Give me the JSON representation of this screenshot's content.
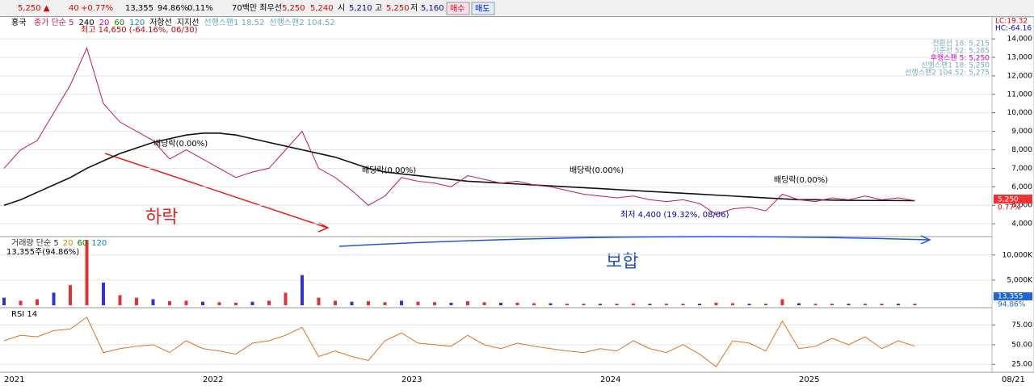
{
  "toolbar": {
    "price": "5,250 ▲",
    "change": "40",
    "change_pct": "+0.77%",
    "volume": "13,355",
    "volume_pct": "94.86%",
    "turnover": "0.11%",
    "best_quote_label": "70백만 최우선",
    "ask": "5,250",
    "bid": "5,240",
    "open_label": "시",
    "open": "5,210",
    "high_label": "고",
    "high": "5,250",
    "low_label": "저",
    "low": "5,160",
    "buy_button": "매수",
    "sell_button": "매도"
  },
  "price_panel": {
    "type": "line",
    "name": "홍국",
    "legend": [
      "종가 단순 5",
      "240",
      "20",
      "60",
      "120",
      "저항선",
      "지지선",
      "선행스팬1 18.52",
      "선행스팬2 104.52"
    ],
    "lc": "LC:19.32",
    "hc": "HC:-64.16",
    "ylim": [
      3350,
      15140
    ],
    "yticks": [
      {
        "value": 4000,
        "label": "4,000"
      },
      {
        "value": 5000,
        "label": "5,000"
      },
      {
        "value": 6000,
        "label": "6,000"
      },
      {
        "value": 7000,
        "label": "7,000"
      },
      {
        "value": 8000,
        "label": "8,000"
      },
      {
        "value": 9000,
        "label": "9,000"
      },
      {
        "value": 10000,
        "label": "10,000"
      },
      {
        "value": 11000,
        "label": "11,000"
      },
      {
        "value": 12000,
        "label": "12,000"
      },
      {
        "value": 13000,
        "label": "13,000"
      },
      {
        "value": 14000,
        "label": "14,000"
      }
    ],
    "close": [
      7000,
      8000,
      8500,
      10000,
      11500,
      13500,
      10500,
      9500,
      9000,
      8500,
      7500,
      8000,
      7500,
      7000,
      6500,
      6800,
      7000,
      8000,
      9000,
      7000,
      6500,
      5800,
      5000,
      5500,
      6500,
      6300,
      6200,
      6000,
      6600,
      6400,
      6200,
      6300,
      6100,
      6000,
      5800,
      5600,
      5500,
      5400,
      5500,
      5300,
      5200,
      5300,
      5100,
      4500,
      4800,
      4900,
      4700,
      5600,
      5300,
      5200,
      5400,
      5300,
      5500,
      5300,
      5400,
      5250
    ],
    "ma240": [
      5000,
      5300,
      5700,
      6100,
      6500,
      7000,
      7400,
      7800,
      8100,
      8400,
      8600,
      8800,
      8900,
      8900,
      8800,
      8600,
      8400,
      8200,
      8000,
      7800,
      7600,
      7300,
      7000,
      6800,
      6700,
      6600,
      6500,
      6400,
      6300,
      6250,
      6200,
      6150,
      6100,
      6050,
      6000,
      5950,
      5900,
      5850,
      5800,
      5750,
      5700,
      5650,
      5600,
      5550,
      5500,
      5450,
      5400,
      5350,
      5300,
      5300,
      5280,
      5270,
      5260,
      5260,
      5255,
      5250
    ],
    "indicator_legend": [
      "전환선 18: 5,215",
      "기준선 52: 5,285",
      "후행스팬 5: 5,250",
      "선행스팬1 18: 5,250",
      "선행스팬2 104.52: 5,275"
    ],
    "current_price": "5,250",
    "current_pct": "0.77%",
    "annotations": {
      "high": "최고 14,650 (-64.16%, 06/30)",
      "low": "최저 4,400 (19.32%, 08/06)",
      "dividends": [
        "배당락(0.00%)",
        "배당락(0.00%)",
        "배당락(0.00%)",
        "배당락(0.00%)"
      ],
      "fall": "하락",
      "flat": "보합"
    }
  },
  "volume_panel": {
    "type": "bar",
    "legend": [
      "거래량 단순 5",
      "20",
      "60",
      "120"
    ],
    "summary": "13,355주(94.86%)",
    "ylim": [
      0,
      13500
    ],
    "yticks": [
      {
        "value": 10000,
        "label": "10,000K"
      },
      {
        "value": 5000,
        "label": "5,000K"
      }
    ],
    "values": [
      1500,
      900,
      1200,
      2500,
      4000,
      13000,
      4500,
      2000,
      1500,
      1200,
      800,
      900,
      700,
      600,
      500,
      700,
      900,
      2500,
      6000,
      1500,
      900,
      700,
      800,
      600,
      900,
      700,
      600,
      500,
      800,
      600,
      500,
      500,
      400,
      400,
      300,
      300,
      300,
      300,
      350,
      300,
      300,
      300,
      300,
      500,
      400,
      300,
      300,
      1200,
      400,
      300,
      300,
      300,
      300,
      300,
      300,
      300
    ],
    "current_volume": "13,355",
    "current_pct": "94.86%"
  },
  "rsi_panel": {
    "type": "line",
    "legend": "RSI 14",
    "ylim": [
      16,
      95
    ],
    "yticks": [
      {
        "value": 75,
        "label": "75.00"
      },
      {
        "value": 50,
        "label": "50.00"
      },
      {
        "value": 25,
        "label": "25.00"
      }
    ],
    "values": [
      55,
      62,
      60,
      68,
      70,
      85,
      40,
      45,
      48,
      50,
      40,
      55,
      45,
      42,
      38,
      52,
      55,
      62,
      72,
      35,
      42,
      35,
      30,
      55,
      65,
      52,
      50,
      48,
      62,
      50,
      45,
      52,
      48,
      45,
      42,
      40,
      45,
      42,
      55,
      45,
      40,
      50,
      38,
      22,
      55,
      52,
      42,
      80,
      45,
      48,
      58,
      50,
      60,
      45,
      55,
      48
    ]
  },
  "x_axis": {
    "labels": [
      "2021",
      "2022",
      "2023",
      "2024",
      "2025"
    ],
    "end_date": "08/21"
  }
}
